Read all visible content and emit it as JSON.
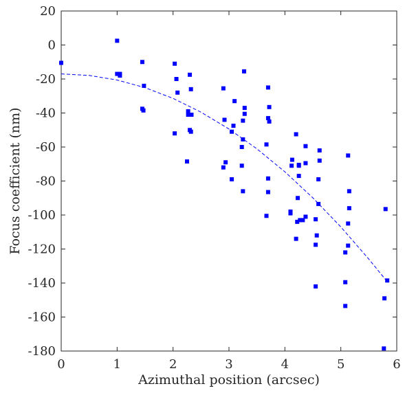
{
  "chart_data": {
    "type": "scatter",
    "title": "",
    "xlabel": "Azimuthal position (arcsec)",
    "ylabel": "Focus coefficient (nm)",
    "xlim": [
      0,
      6
    ],
    "ylim": [
      -180,
      20
    ],
    "xticks": [
      0,
      1,
      2,
      3,
      4,
      5,
      6
    ],
    "yticks": [
      -180,
      -160,
      -140,
      -120,
      -100,
      -80,
      -60,
      -40,
      -20,
      0,
      20
    ],
    "grid": false,
    "legend": "none",
    "colors": {
      "points": "#0000ff",
      "fit": "#0000ff",
      "axes": "#262626"
    },
    "series": [
      {
        "type": "scatter",
        "marker": "square",
        "x": [
          0.0,
          1.0,
          1.0,
          1.05,
          1.05,
          1.45,
          1.48,
          1.45,
          1.47,
          2.03,
          2.06,
          2.08,
          2.03,
          2.3,
          2.32,
          2.27,
          2.27,
          2.33,
          2.32,
          2.3,
          2.25,
          2.92,
          2.94,
          2.9,
          2.9,
          3.1,
          3.08,
          3.05,
          3.05,
          3.27,
          3.28,
          3.28,
          3.25,
          3.25,
          3.23,
          3.23,
          3.25,
          3.7,
          3.72,
          3.7,
          3.72,
          3.7,
          3.7,
          3.67,
          3.67,
          4.13,
          4.12,
          4.1,
          4.1,
          4.2,
          4.25,
          4.25,
          4.25,
          4.23,
          4.27,
          4.37,
          4.37,
          4.37,
          4.32,
          4.22,
          4.2,
          4.62,
          4.62,
          4.6,
          4.6,
          4.55,
          4.57,
          4.55,
          4.55,
          5.13,
          5.15,
          5.15,
          5.13,
          5.13,
          5.08,
          5.08,
          5.08,
          5.8,
          5.83,
          5.78,
          5.77
        ],
        "y": [
          -10.5,
          2.5,
          -17,
          -17,
          -18,
          -10,
          -24,
          -37.5,
          -38.5,
          -11,
          -20,
          -28,
          -52,
          -17.5,
          -26,
          -39,
          -41,
          -41,
          -51,
          -50,
          -68.5,
          -44,
          -69,
          -72,
          -25.5,
          -33,
          -47.5,
          -51,
          -79,
          -15.5,
          -37,
          -40.5,
          -44.5,
          -55.5,
          -60,
          -71,
          -86,
          -25,
          -36.5,
          -43,
          -45,
          -78.5,
          -86.5,
          -100.5,
          -58.5,
          -67.5,
          -71,
          -99,
          -98,
          -52.5,
          -70.5,
          -71,
          -77,
          -90,
          -103,
          -59.5,
          -69.5,
          -101,
          -103,
          -104,
          -114,
          -62,
          -68,
          -79,
          -93.5,
          -102.5,
          -112,
          -117.5,
          -142,
          -65,
          -86,
          -96,
          -105,
          -118,
          -122,
          -139.5,
          -153.5,
          -96.5,
          -138.5,
          -149,
          -178.5
        ]
      },
      {
        "type": "line",
        "style": "dashed",
        "x": [
          0,
          0.5,
          1,
          1.5,
          2,
          2.5,
          3,
          3.5,
          4,
          4.5,
          5,
          5.5,
          5.8
        ],
        "y": [
          -17,
          -17.9,
          -20.6,
          -25.1,
          -31.4,
          -39.5,
          -49.4,
          -61.1,
          -74.6,
          -89.9,
          -107,
          -125.9,
          -138
        ]
      }
    ]
  }
}
